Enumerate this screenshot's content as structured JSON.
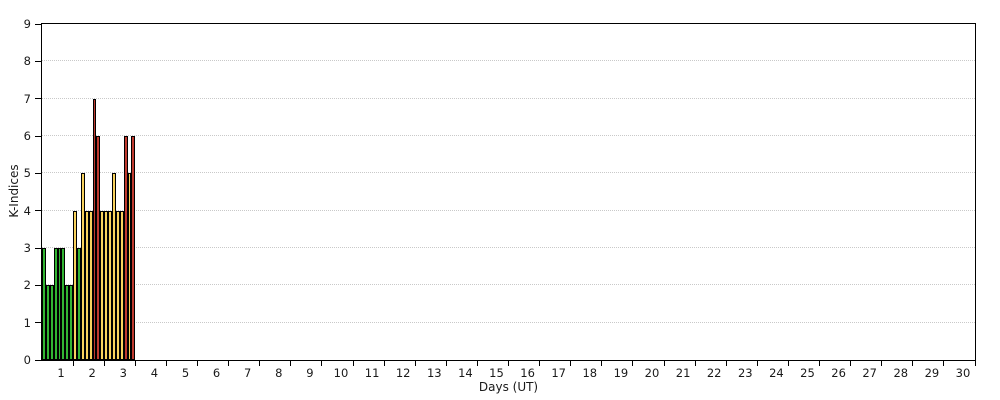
{
  "chart_data": {
    "type": "bar",
    "title": "",
    "xlabel": "Days (UT)",
    "ylabel": "K-Indices",
    "ylim": [
      0,
      9
    ],
    "xlim_days": [
      1,
      30
    ],
    "grid": "dotted horizontal gridlines at each integer K value",
    "legend": "none",
    "bars_per_day": 8,
    "bar_period_hours": 3,
    "x_tick_labels": [
      "1",
      "2",
      "3",
      "4",
      "5",
      "6",
      "7",
      "8",
      "9",
      "10",
      "11",
      "12",
      "13",
      "14",
      "15",
      "16",
      "17",
      "18",
      "19",
      "20",
      "21",
      "22",
      "23",
      "24",
      "25",
      "26",
      "27",
      "28",
      "29",
      "30"
    ],
    "y_tick_labels": [
      "0",
      "1",
      "2",
      "3",
      "4",
      "5",
      "6",
      "7",
      "8",
      "9"
    ],
    "series": [
      {
        "day": 1,
        "values": [
          3,
          2,
          2,
          3,
          3,
          3,
          2,
          2
        ]
      },
      {
        "day": 2,
        "values": [
          4,
          3,
          5,
          4,
          4,
          7,
          6,
          4
        ]
      },
      {
        "day": 3,
        "values": [
          4,
          4,
          5,
          4,
          4,
          6,
          5,
          6
        ]
      }
    ],
    "days_without_data": "4 through 30 (no bars)",
    "colors": {
      "low": "#33b533",
      "moderate": "#f8d25e",
      "high": "#bf3a2f",
      "bar_outline": "#000000",
      "gridline": "#c9c9c9",
      "axis": "#000000",
      "text": "#1a1a1a",
      "background": "#ffffff"
    },
    "color_rule": "K 0-3 green (low), K 4-5 yellow (moderate), K 6-9 red (high)"
  }
}
